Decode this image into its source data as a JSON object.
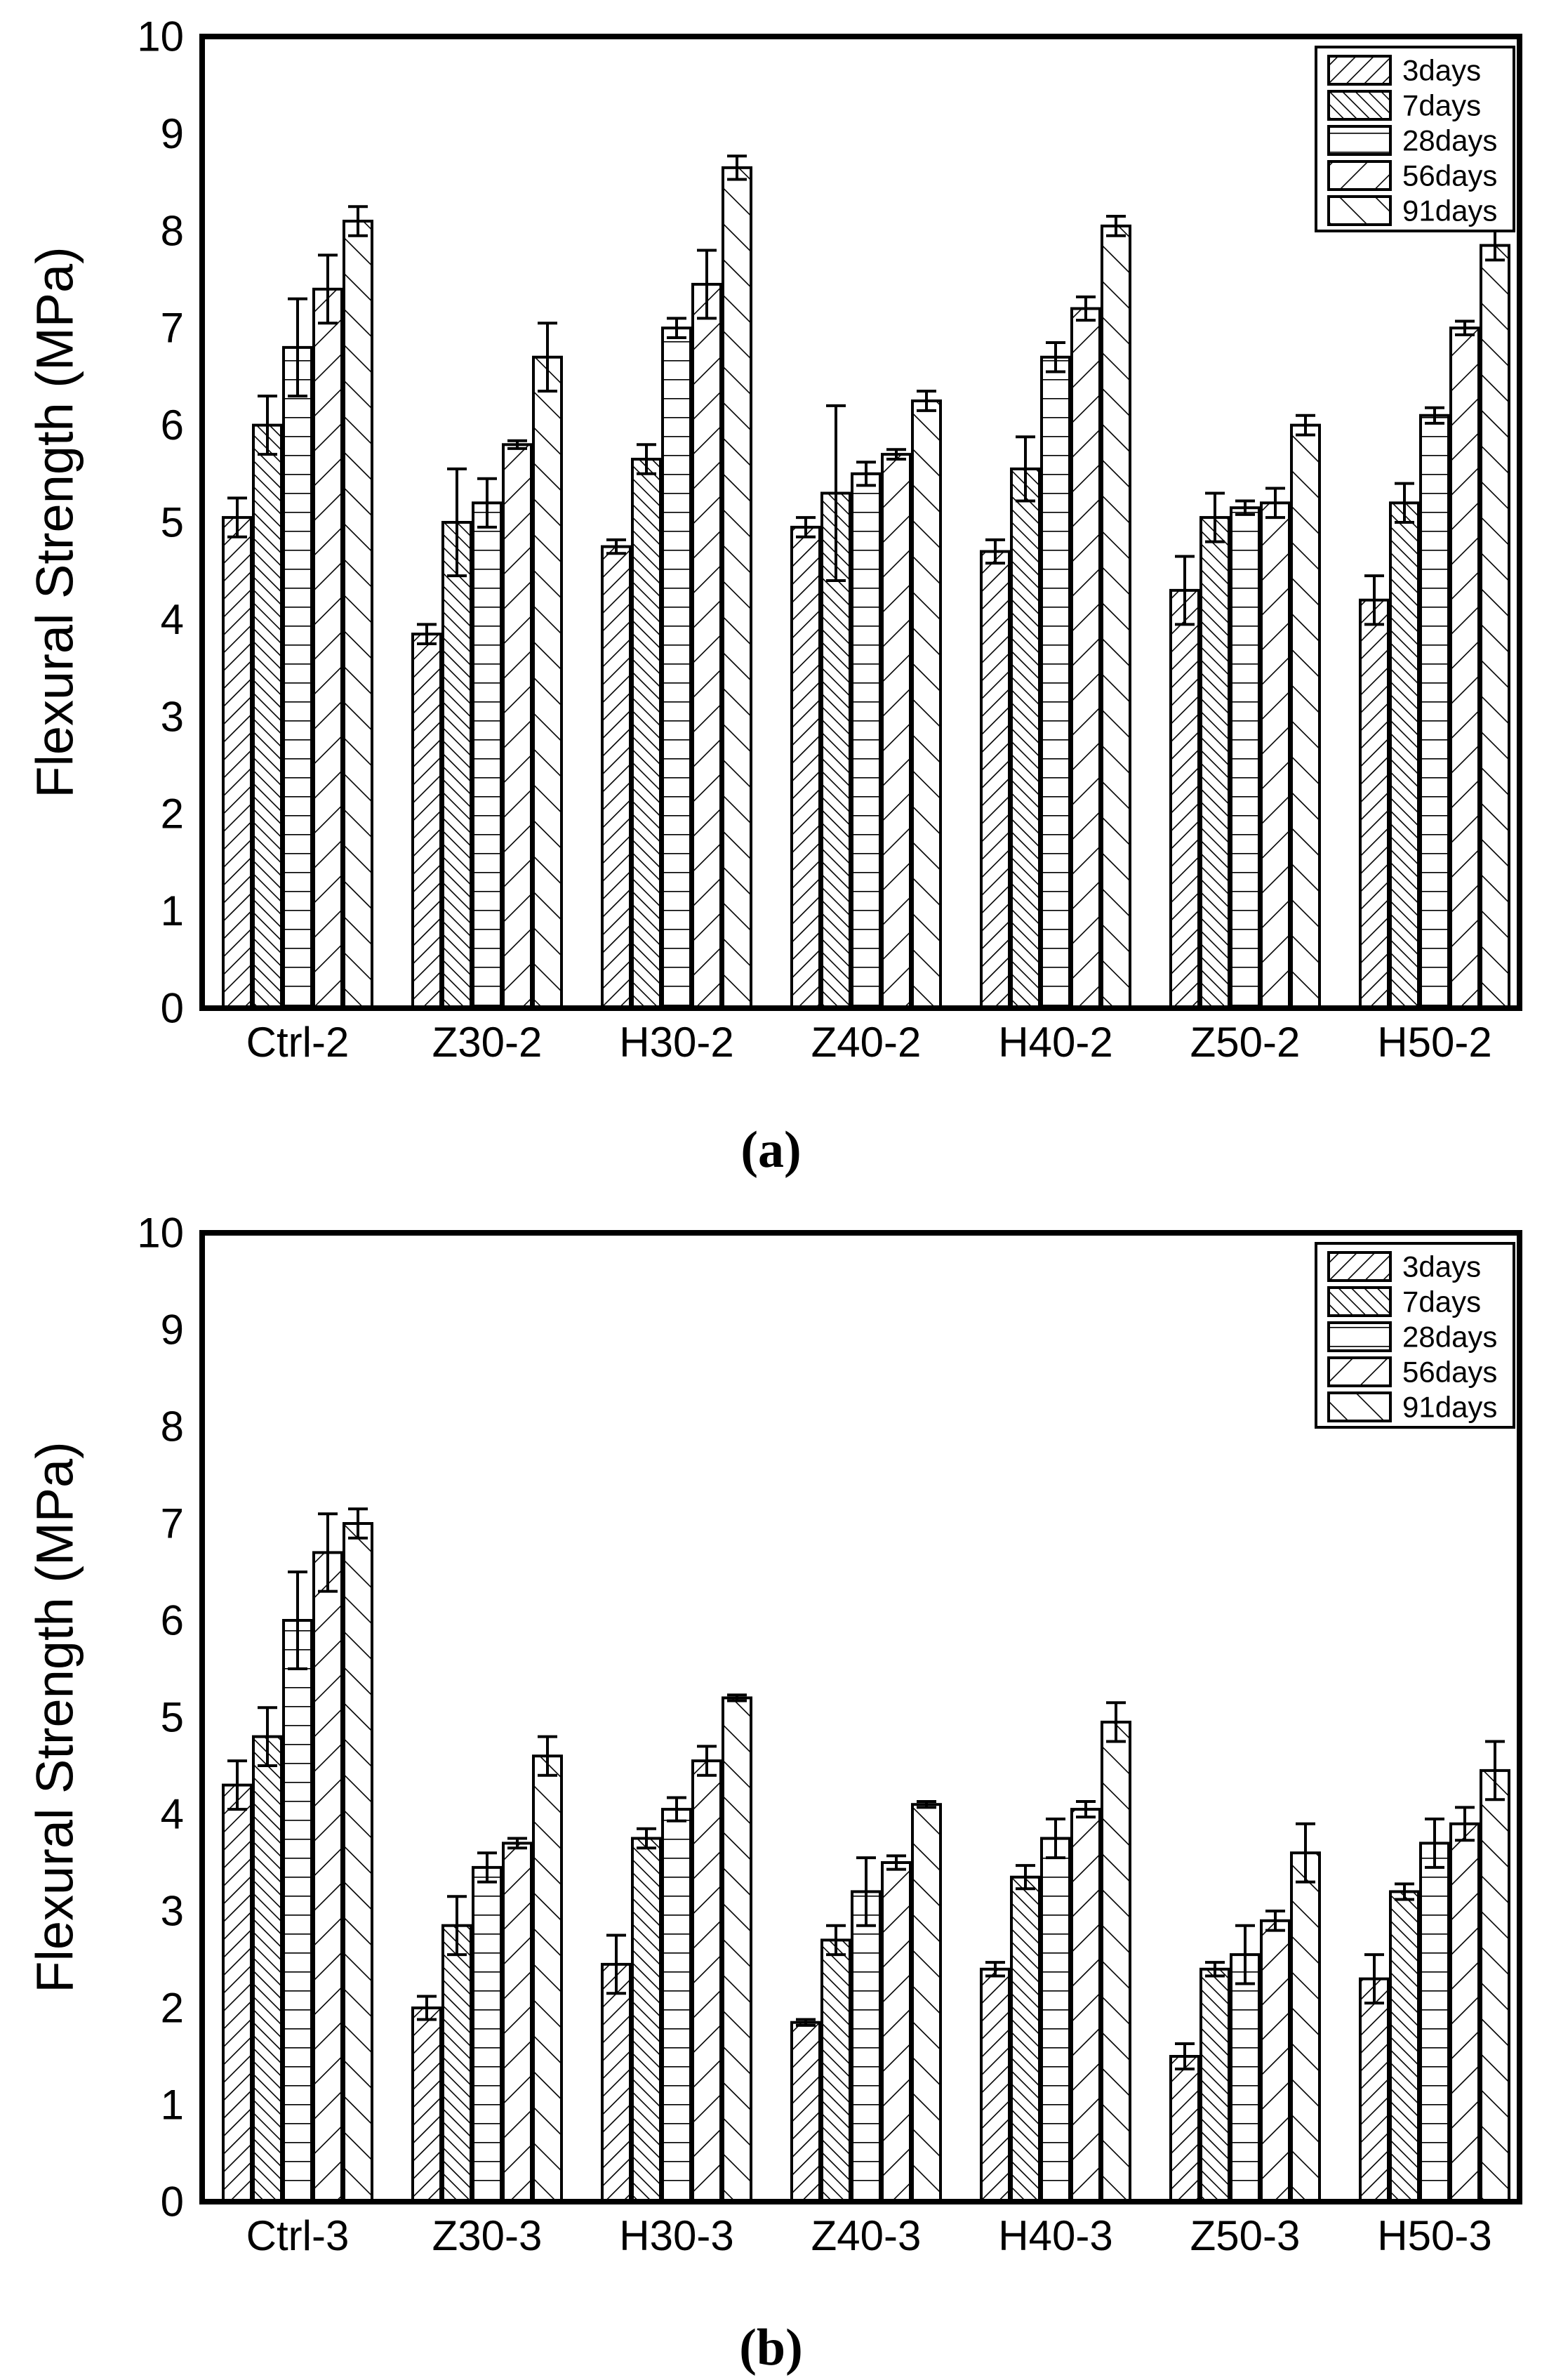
{
  "figure": {
    "background": "#ffffff",
    "ink": "#000000",
    "caption_a": "(a)",
    "caption_b": "(b)"
  },
  "chart_data": [
    {
      "panel": "a",
      "type": "bar",
      "caption": "(a)",
      "title": "",
      "xlabel": "",
      "ylabel": "Flexural Strength (MPa)",
      "ylim": [
        0,
        10
      ],
      "yticks": [
        0,
        1,
        2,
        3,
        4,
        5,
        6,
        7,
        8,
        9,
        10
      ],
      "grid": false,
      "legend_position": "top-right",
      "legend": [
        "3days",
        "7days",
        "28days",
        "56days",
        "91days"
      ],
      "categories": [
        "Ctrl-2",
        "Z30-2",
        "H30-2",
        "Z40-2",
        "H40-2",
        "Z50-2",
        "H50-2"
      ],
      "series": [
        {
          "name": "3days",
          "hatch": "diagonal-up-dense",
          "values": [
            5.05,
            3.85,
            4.75,
            4.95,
            4.7,
            4.3,
            4.2
          ],
          "errors": [
            0.2,
            0.1,
            0.07,
            0.1,
            0.12,
            0.35,
            0.25
          ]
        },
        {
          "name": "7days",
          "hatch": "diagonal-down-dense",
          "values": [
            6.0,
            5.0,
            5.65,
            5.3,
            5.55,
            5.05,
            5.2
          ],
          "errors": [
            0.3,
            0.55,
            0.15,
            0.9,
            0.33,
            0.25,
            0.2
          ]
        },
        {
          "name": "28days",
          "hatch": "horizontal",
          "values": [
            6.8,
            5.2,
            7.0,
            5.5,
            6.7,
            5.15,
            6.1
          ],
          "errors": [
            0.5,
            0.25,
            0.1,
            0.12,
            0.15,
            0.07,
            0.08
          ]
        },
        {
          "name": "56days",
          "hatch": "diagonal-up-sparse",
          "values": [
            7.4,
            5.8,
            7.45,
            5.7,
            7.2,
            5.2,
            7.0
          ],
          "errors": [
            0.35,
            0.04,
            0.35,
            0.05,
            0.12,
            0.15,
            0.07
          ]
        },
        {
          "name": "91days",
          "hatch": "diagonal-down-sparse",
          "values": [
            8.1,
            6.7,
            8.65,
            6.25,
            8.05,
            6.0,
            7.85
          ],
          "errors": [
            0.15,
            0.35,
            0.12,
            0.1,
            0.1,
            0.1,
            0.15
          ]
        }
      ]
    },
    {
      "panel": "b",
      "type": "bar",
      "caption": "(b)",
      "title": "",
      "xlabel": "",
      "ylabel": "Flexural Strength (MPa)",
      "ylim": [
        0,
        10
      ],
      "yticks": [
        0,
        1,
        2,
        3,
        4,
        5,
        6,
        7,
        8,
        9,
        10
      ],
      "grid": false,
      "legend_position": "top-right",
      "legend": [
        "3days",
        "7days",
        "28days",
        "56days",
        "91days"
      ],
      "categories": [
        "Ctrl-3",
        "Z30-3",
        "H30-3",
        "Z40-3",
        "H40-3",
        "Z50-3",
        "H50-3"
      ],
      "series": [
        {
          "name": "3days",
          "hatch": "diagonal-up-dense",
          "values": [
            4.3,
            2.0,
            2.45,
            1.85,
            2.4,
            1.5,
            2.3
          ],
          "errors": [
            0.25,
            0.12,
            0.3,
            0.03,
            0.07,
            0.13,
            0.25
          ]
        },
        {
          "name": "7days",
          "hatch": "diagonal-down-dense",
          "values": [
            4.8,
            2.85,
            3.75,
            2.7,
            3.35,
            2.4,
            3.2
          ],
          "errors": [
            0.3,
            0.3,
            0.1,
            0.15,
            0.12,
            0.07,
            0.08
          ]
        },
        {
          "name": "28days",
          "hatch": "horizontal",
          "values": [
            6.0,
            3.45,
            4.05,
            3.2,
            3.75,
            2.55,
            3.7
          ],
          "errors": [
            0.5,
            0.15,
            0.12,
            0.35,
            0.2,
            0.3,
            0.25
          ]
        },
        {
          "name": "56days",
          "hatch": "diagonal-up-sparse",
          "values": [
            6.7,
            3.7,
            4.55,
            3.5,
            4.05,
            2.9,
            3.9
          ],
          "errors": [
            0.4,
            0.05,
            0.15,
            0.07,
            0.08,
            0.1,
            0.17
          ]
        },
        {
          "name": "91days",
          "hatch": "diagonal-down-sparse",
          "values": [
            7.0,
            4.6,
            5.2,
            4.1,
            4.95,
            3.6,
            4.45
          ],
          "errors": [
            0.15,
            0.2,
            0.03,
            0.03,
            0.2,
            0.3,
            0.3
          ]
        }
      ]
    }
  ]
}
